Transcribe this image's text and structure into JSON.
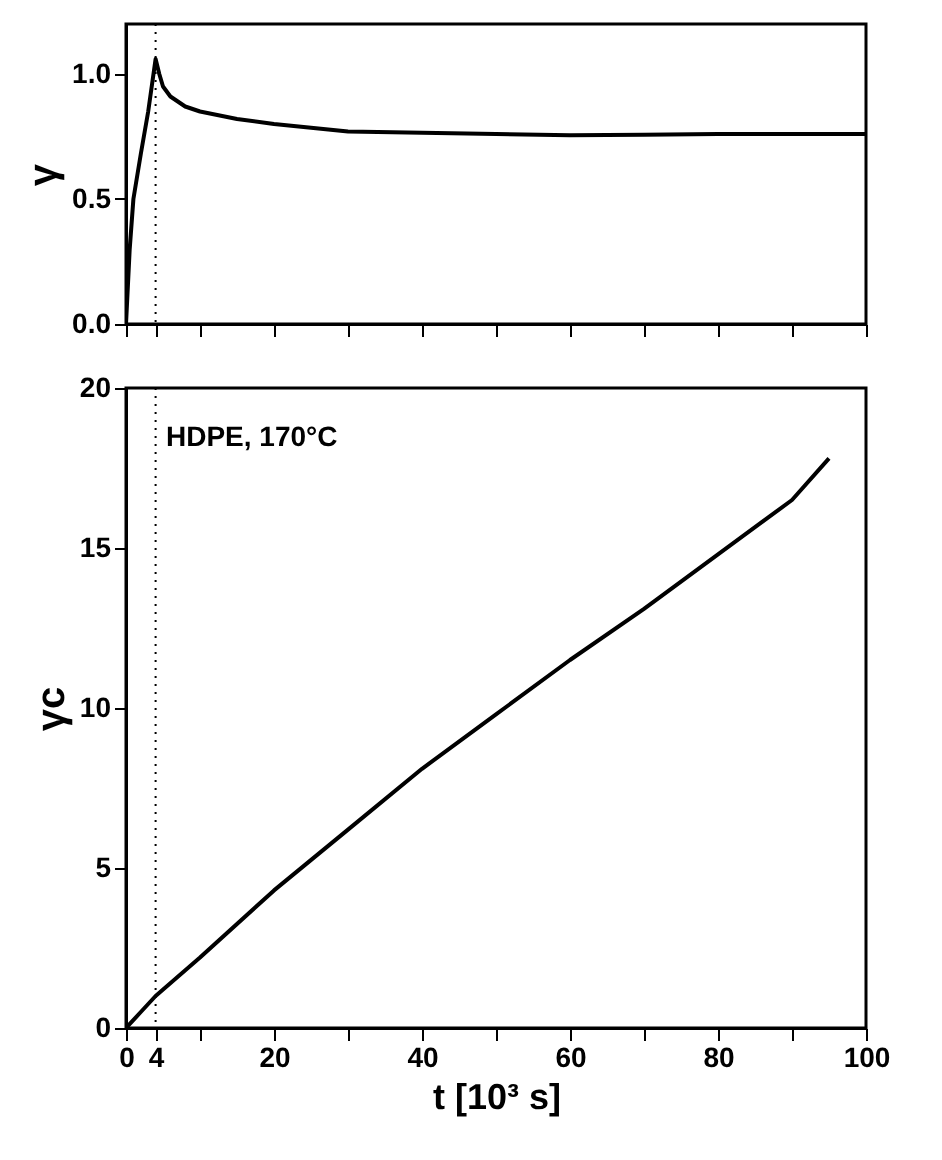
{
  "chart_data": [
    {
      "type": "line",
      "ylabel": "γ",
      "xlim": [
        0,
        100
      ],
      "ylim": [
        0,
        1.2
      ],
      "tick_labels": "y",
      "xticks": [
        0,
        4,
        10,
        20,
        30,
        40,
        50,
        60,
        70,
        80,
        90,
        100
      ],
      "yticks": [
        {
          "value": 0,
          "label": "0.0"
        },
        {
          "value": 0.5,
          "label": "0.5"
        },
        {
          "value": 1,
          "label": "1.0"
        }
      ],
      "ref_lines": [
        {
          "axis": "x",
          "value": 4,
          "line_style": "dotted"
        }
      ],
      "series": [
        {
          "color": "#000000",
          "x": [
            0,
            0.5,
            1,
            2,
            3,
            4,
            4.5,
            5,
            6,
            8,
            10,
            15,
            20,
            25,
            30,
            40,
            50,
            60,
            70,
            80,
            90,
            100
          ],
          "values": [
            0,
            0.3,
            0.5,
            0.68,
            0.85,
            1.06,
            1.0,
            0.95,
            0.91,
            0.87,
            0.85,
            0.82,
            0.8,
            0.785,
            0.77,
            0.765,
            0.76,
            0.755,
            0.757,
            0.76,
            0.76,
            0.76
          ]
        }
      ]
    },
    {
      "type": "line",
      "ylabel": "γc",
      "xlabel": "t [10³ s]",
      "xlim": [
        0,
        100
      ],
      "ylim": [
        0,
        20
      ],
      "xticks": [
        0,
        4,
        {
          "value": 10,
          "label": null
        },
        20,
        {
          "value": 30,
          "label": null
        },
        40,
        {
          "value": 50,
          "label": null
        },
        60,
        {
          "value": 70,
          "label": null
        },
        80,
        {
          "value": 90,
          "label": null
        },
        100
      ],
      "yticks": [
        0,
        5,
        10,
        15,
        20
      ],
      "ref_lines": [
        {
          "axis": "x",
          "value": 4,
          "line_style": "dotted"
        }
      ],
      "annotations": [
        "HDPE, 170°C"
      ],
      "series": [
        {
          "color": "#000000",
          "x": [
            0,
            2,
            4,
            10,
            20,
            30,
            40,
            50,
            60,
            70,
            80,
            90,
            95
          ],
          "values": [
            0,
            0.5,
            1.0,
            2.2,
            4.3,
            6.2,
            8.1,
            9.8,
            11.5,
            13.1,
            14.8,
            16.5,
            17.8
          ]
        }
      ]
    }
  ]
}
